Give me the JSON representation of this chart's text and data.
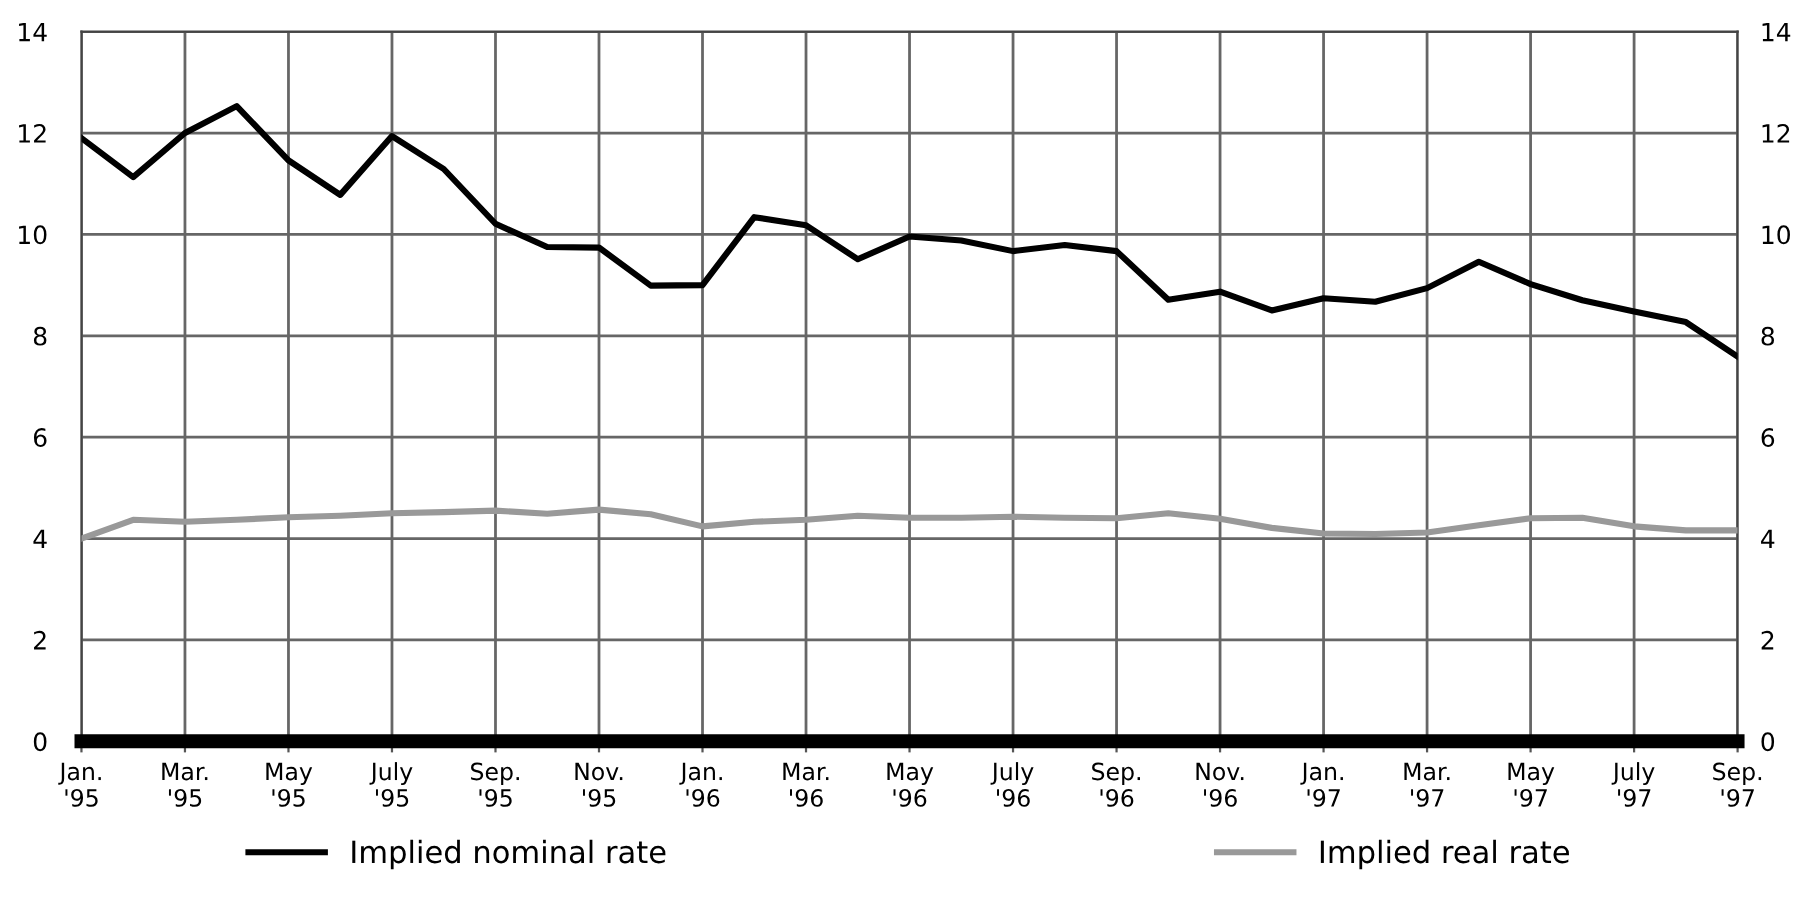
{
  "chart_data": {
    "type": "line",
    "categories": [
      "Jan.\n'95",
      null,
      "Mar.\n'95",
      null,
      "May\n'95",
      null,
      "July\n'95",
      null,
      "Sep.\n'95",
      null,
      "Nov.\n'95",
      null,
      "Jan.\n'96",
      null,
      "Mar.\n'96",
      null,
      "May\n'96",
      null,
      "July\n'96",
      null,
      "Sep.\n'96",
      null,
      "Nov.\n'96",
      null,
      "Jan.\n'97",
      null,
      "Mar.\n'97",
      null,
      "May\n'97",
      null,
      "July\n'97",
      null,
      "Sep.\n'97"
    ],
    "series": [
      {
        "name": "Implied nominal rate",
        "color": "#000000",
        "values": [
          11.9,
          11.13,
          12.0,
          12.53,
          11.46,
          10.78,
          11.94,
          11.29,
          10.21,
          9.75,
          9.74,
          8.99,
          9.0,
          10.34,
          10.18,
          9.51,
          9.96,
          9.88,
          9.67,
          9.79,
          9.67,
          8.71,
          8.87,
          8.5,
          8.74,
          8.67,
          8.94,
          9.46,
          9.02,
          8.7,
          8.48,
          8.27,
          7.59
        ]
      },
      {
        "name": "Implied real rate",
        "color": "#999999",
        "values": [
          4.0,
          4.37,
          4.33,
          4.37,
          4.42,
          4.45,
          4.5,
          4.52,
          4.55,
          4.49,
          4.57,
          4.48,
          4.24,
          4.33,
          4.37,
          4.45,
          4.41,
          4.41,
          4.43,
          4.41,
          4.4,
          4.5,
          4.39,
          4.21,
          4.1,
          4.09,
          4.12,
          4.26,
          4.4,
          4.41,
          4.24,
          4.16,
          4.16
        ]
      }
    ],
    "ylim": [
      0,
      14
    ],
    "yticks": [
      0,
      2,
      4,
      6,
      8,
      10,
      12,
      14
    ],
    "y2lim": [
      0,
      14
    ],
    "y2ticks": [
      0,
      2,
      4,
      6,
      8,
      10,
      12,
      14
    ],
    "grid": true,
    "legend": "bottom",
    "marker": "none",
    "line_style": "solid"
  }
}
